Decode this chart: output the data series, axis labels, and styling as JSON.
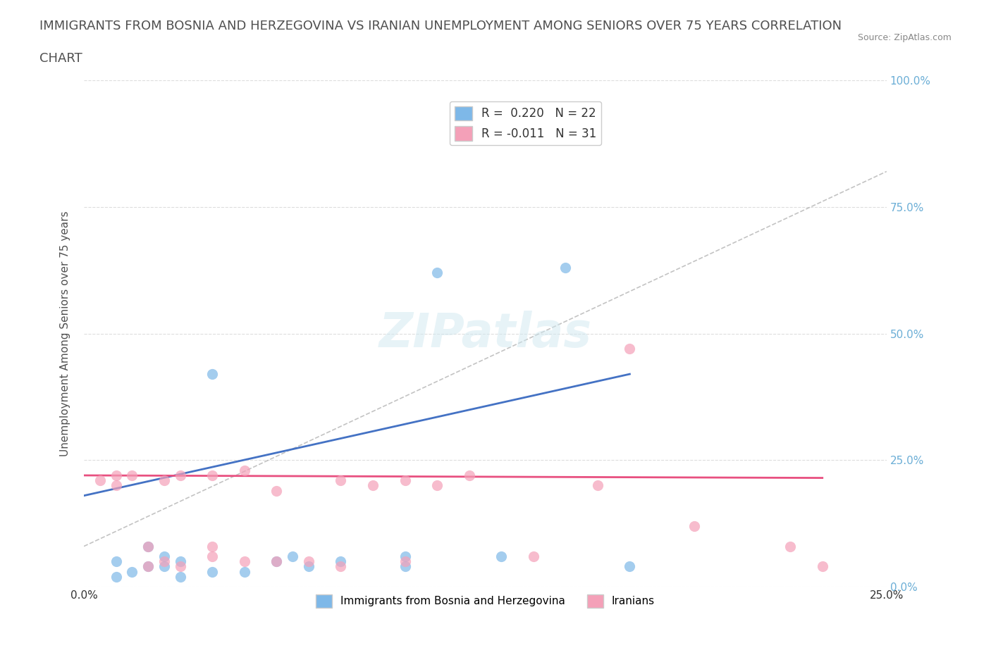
{
  "title_line1": "IMMIGRANTS FROM BOSNIA AND HERZEGOVINA VS IRANIAN UNEMPLOYMENT AMONG SENIORS OVER 75 YEARS CORRELATION",
  "title_line2": "CHART",
  "source": "Source: ZipAtlas.com",
  "xlabel": "Immigrants from Bosnia and Herzegovina",
  "ylabel": "Unemployment Among Seniors over 75 years",
  "xlim": [
    0.0,
    0.25
  ],
  "ylim": [
    0.0,
    1.0
  ],
  "xticks": [
    0.0,
    0.05,
    0.1,
    0.15,
    0.2,
    0.25
  ],
  "yticks": [
    0.0,
    0.25,
    0.5,
    0.75,
    1.0
  ],
  "legend_entries": [
    {
      "label": "R =  0.220   N = 22",
      "color": "#aec6e8"
    },
    {
      "label": "R = -0.011   N = 31",
      "color": "#f4b8c8"
    }
  ],
  "blue_scatter_x": [
    0.01,
    0.01,
    0.015,
    0.02,
    0.02,
    0.025,
    0.025,
    0.03,
    0.03,
    0.04,
    0.04,
    0.05,
    0.06,
    0.065,
    0.07,
    0.08,
    0.1,
    0.1,
    0.11,
    0.13,
    0.15,
    0.17
  ],
  "blue_scatter_y": [
    0.02,
    0.05,
    0.03,
    0.04,
    0.08,
    0.04,
    0.06,
    0.02,
    0.05,
    0.03,
    0.42,
    0.03,
    0.05,
    0.06,
    0.04,
    0.05,
    0.04,
    0.06,
    0.62,
    0.06,
    0.63,
    0.04
  ],
  "pink_scatter_x": [
    0.005,
    0.01,
    0.01,
    0.015,
    0.02,
    0.02,
    0.025,
    0.025,
    0.03,
    0.03,
    0.04,
    0.04,
    0.04,
    0.05,
    0.05,
    0.06,
    0.06,
    0.07,
    0.08,
    0.08,
    0.09,
    0.1,
    0.1,
    0.11,
    0.12,
    0.14,
    0.16,
    0.17,
    0.19,
    0.22,
    0.23
  ],
  "pink_scatter_y": [
    0.21,
    0.2,
    0.22,
    0.22,
    0.04,
    0.08,
    0.05,
    0.21,
    0.04,
    0.22,
    0.06,
    0.08,
    0.22,
    0.05,
    0.23,
    0.05,
    0.19,
    0.05,
    0.04,
    0.21,
    0.2,
    0.05,
    0.21,
    0.2,
    0.22,
    0.06,
    0.2,
    0.47,
    0.12,
    0.08,
    0.04
  ],
  "blue_line_x": [
    0.0,
    0.17
  ],
  "blue_line_y": [
    0.18,
    0.42
  ],
  "pink_line_x": [
    0.0,
    0.23
  ],
  "pink_line_y": [
    0.22,
    0.215
  ],
  "diag_line_x": [
    0.0,
    0.25
  ],
  "diag_line_y": [
    0.08,
    0.82
  ],
  "blue_color": "#7eb8e8",
  "pink_color": "#f4a0b8",
  "blue_line_color": "#4472c4",
  "pink_line_color": "#e85080",
  "diag_line_color": "#aaaaaa",
  "title_color": "#505050",
  "axis_label_color": "#505050",
  "tick_label_color_right": "#6baed6",
  "watermark": "ZIPatlas",
  "background_color": "#ffffff",
  "grid_color": "#dddddd",
  "bottom_legend_labels": [
    "Immigrants from Bosnia and Herzegovina",
    "Iranians"
  ]
}
